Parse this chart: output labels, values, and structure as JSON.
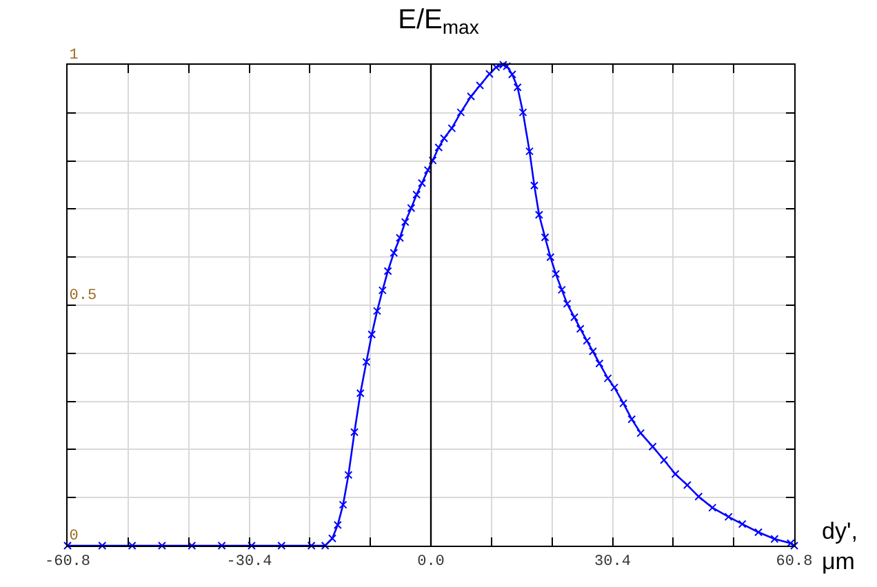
{
  "chart_data": {
    "type": "line",
    "title": "E/E$_{max}$",
    "xlabel": "dy',\nμm",
    "x": [
      -60.8,
      -55,
      -50,
      -45,
      -40,
      -35,
      -30,
      -25,
      -20,
      -17.7,
      -16.5,
      -15.6,
      -14.7,
      -13.8,
      -12.8,
      -11.8,
      -10.8,
      -9.9,
      -9.0,
      -8.1,
      -7.2,
      -6.2,
      -5.2,
      -4.3,
      -3.3,
      -2.4,
      -1.5,
      -0.5,
      0.3,
      1.3,
      2.2,
      3.5,
      5.0,
      6.7,
      8.2,
      9.8,
      10.9,
      12.1,
      12.7,
      13.6,
      14.5,
      15.4,
      16.5,
      17.3,
      18.1,
      19.1,
      20.0,
      20.9,
      21.9,
      22.8,
      24.0,
      25.0,
      26.1,
      27.1,
      28.2,
      29.6,
      30.7,
      32.2,
      33.6,
      35.1,
      37.1,
      39.0,
      40.9,
      42.9,
      44.8,
      47.1,
      49.8,
      52.1,
      54.8,
      57.5,
      60.2,
      60.8
    ],
    "series": [
      {
        "color": "#0000ff",
        "values": [
          0,
          0,
          0,
          0,
          0,
          0,
          0,
          0,
          0,
          0,
          0.015,
          0.043,
          0.085,
          0.147,
          0.236,
          0.317,
          0.382,
          0.439,
          0.488,
          0.531,
          0.571,
          0.609,
          0.64,
          0.673,
          0.702,
          0.73,
          0.754,
          0.781,
          0.801,
          0.828,
          0.847,
          0.868,
          0.901,
          0.934,
          0.957,
          0.981,
          0.995,
          1.0,
          0.997,
          0.98,
          0.953,
          0.901,
          0.82,
          0.749,
          0.688,
          0.641,
          0.6,
          0.565,
          0.532,
          0.503,
          0.475,
          0.451,
          0.426,
          0.404,
          0.379,
          0.348,
          0.329,
          0.296,
          0.263,
          0.234,
          0.206,
          0.178,
          0.149,
          0.126,
          0.102,
          0.079,
          0.06,
          0.045,
          0.028,
          0.014,
          0.005,
          0
        ]
      }
    ],
    "xlim": [
      -60.8,
      60.8
    ],
    "xticks": [
      -60.8,
      {
        "value": -50.67,
        "label": null
      },
      {
        "value": -40.53,
        "label": null
      },
      -30.4,
      {
        "value": -20.27,
        "label": null
      },
      {
        "value": -10.13,
        "label": null
      },
      {
        "value": 0,
        "label": "0.0"
      },
      {
        "value": 10.13,
        "label": null
      },
      {
        "value": 20.27,
        "label": null
      },
      30.4,
      {
        "value": 40.53,
        "label": null
      },
      {
        "value": 50.67,
        "label": null
      },
      60.8
    ],
    "ylim": [
      0,
      1
    ],
    "yticks": [
      0,
      {
        "value": 0.1,
        "label": null
      },
      {
        "value": 0.2,
        "label": null
      },
      {
        "value": 0.3,
        "label": null
      },
      {
        "value": 0.4,
        "label": null
      },
      0.5,
      {
        "value": 0.6,
        "label": null
      },
      {
        "value": 0.7,
        "label": null
      },
      {
        "value": 0.8,
        "label": null
      },
      {
        "value": 0.9,
        "label": null
      },
      1
    ],
    "ref_lines": [
      {
        "axis": "x",
        "value": 0,
        "color": "#000000"
      }
    ],
    "grid": true,
    "marker": "cross",
    "line_style": "solid",
    "legend": false
  }
}
